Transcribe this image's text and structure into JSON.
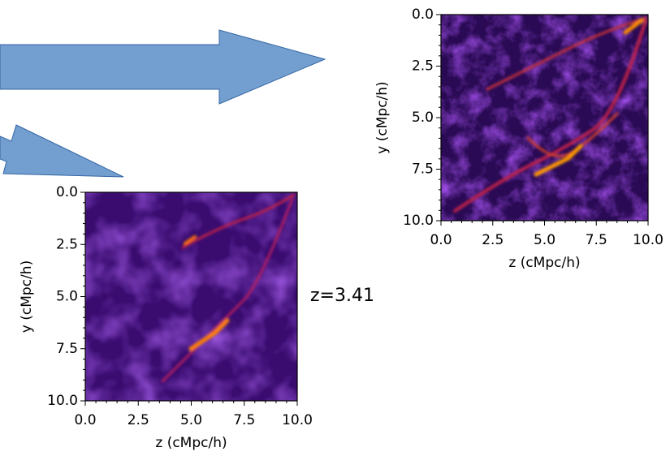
{
  "panels": [
    {
      "x_label": "z (cMpc/h)",
      "y_label": "y (cMpc/h)",
      "xlim": [
        0,
        10
      ],
      "ylim": [
        0,
        10
      ],
      "xticks": [
        {
          "value": 0,
          "label": "0.0"
        },
        {
          "value": 2.5,
          "label": "2.5"
        },
        {
          "value": 5,
          "label": "5.0"
        },
        {
          "value": 7.5,
          "label": "7.5"
        },
        {
          "value": 10,
          "label": "10.0"
        }
      ],
      "yticks": [
        {
          "value": 0,
          "label": "0.0"
        },
        {
          "value": 2.5,
          "label": "2.5"
        },
        {
          "value": 5,
          "label": "5.0"
        },
        {
          "value": 7.5,
          "label": "7.5"
        },
        {
          "value": 10,
          "label": "10.0"
        }
      ]
    },
    {
      "x_label": "z (cMpc/h)",
      "y_label": "y (cMpc/h)",
      "xlim": [
        0,
        10
      ],
      "ylim": [
        0,
        10
      ],
      "xticks": [
        {
          "value": 0,
          "label": "0.0"
        },
        {
          "value": 2.5,
          "label": "2.5"
        },
        {
          "value": 5,
          "label": "5.0"
        },
        {
          "value": 7.5,
          "label": "7.5"
        },
        {
          "value": 10,
          "label": "10.0"
        }
      ],
      "yticks": [
        {
          "value": 0,
          "label": "0.0"
        },
        {
          "value": 2.5,
          "label": "2.5"
        },
        {
          "value": 5,
          "label": "5.0"
        },
        {
          "value": 7.5,
          "label": "7.5"
        },
        {
          "value": 10,
          "label": "10.0"
        }
      ]
    }
  ],
  "annotation": "z=3.41"
}
